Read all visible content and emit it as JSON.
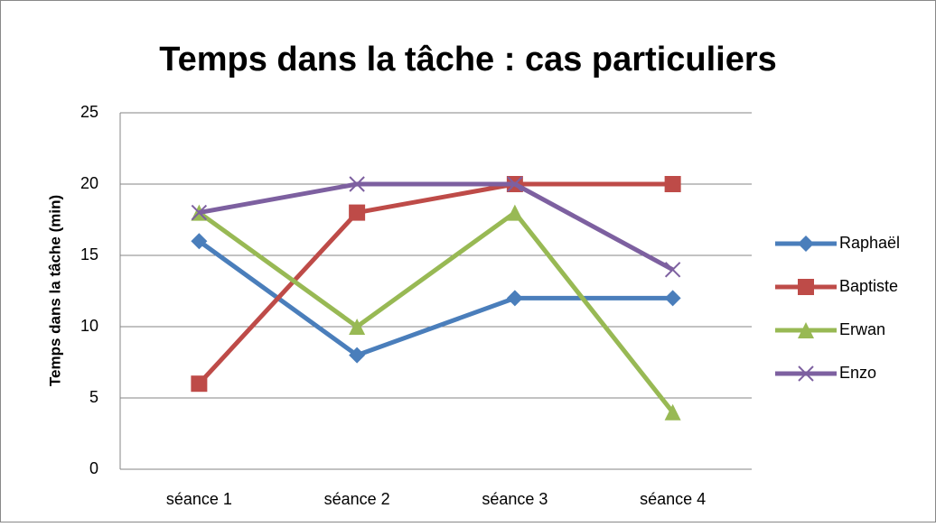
{
  "chart_data": {
    "type": "line",
    "title": "Temps dans la tâche : cas particuliers",
    "y_label": "Temps dans la tâche (min)",
    "categories": [
      "séance 1",
      "séance 2",
      "séance 3",
      "séance 4"
    ],
    "series": [
      {
        "name": "Raphaël",
        "color": "#4a7ebb",
        "marker": "diamond",
        "values": [
          16,
          8,
          12,
          12
        ]
      },
      {
        "name": "Baptiste",
        "color": "#be4b48",
        "marker": "square",
        "values": [
          6,
          18,
          20,
          20
        ]
      },
      {
        "name": "Erwan",
        "color": "#98b954",
        "marker": "triangle",
        "values": [
          18,
          10,
          18,
          4
        ]
      },
      {
        "name": "Enzo",
        "color": "#7d60a0",
        "marker": "x",
        "values": [
          18,
          20,
          20,
          14
        ]
      }
    ],
    "ylim": [
      0,
      25
    ],
    "yticks": [
      0,
      5,
      10,
      15,
      20,
      25
    ],
    "grid": true,
    "legend": "right"
  }
}
